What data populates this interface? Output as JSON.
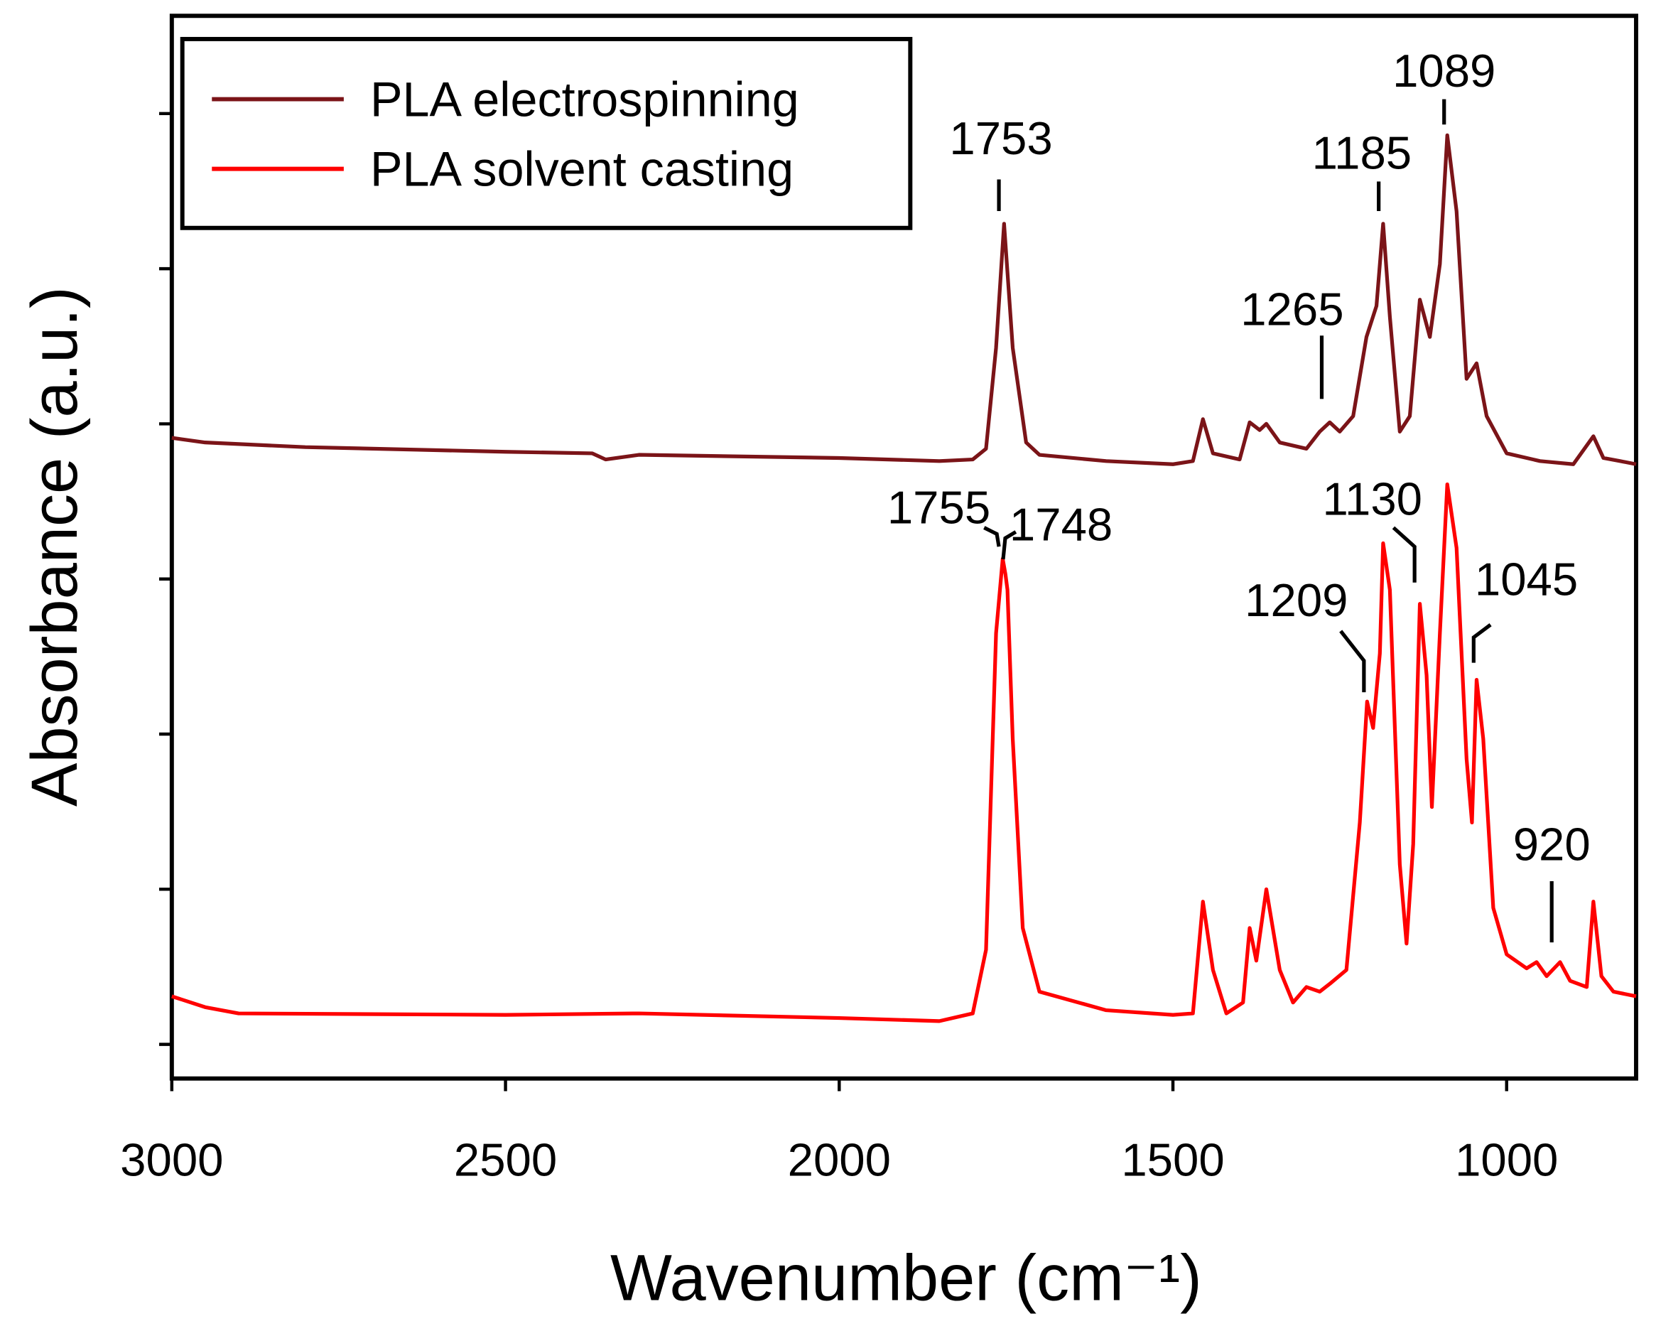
{
  "chart_data": {
    "type": "line",
    "xlabel": "Wavenumber (cm⁻¹)",
    "ylabel": "Absorbance (a.u.)",
    "xlim": [
      3000,
      806
    ],
    "xticks": [
      3000,
      2500,
      2000,
      1500,
      1000
    ],
    "ylim": [
      -0.22,
      6.63
    ],
    "yticks": [
      0,
      1,
      2,
      3,
      4,
      5,
      6
    ],
    "legend": "upper left",
    "series": [
      {
        "name": "PLA electrospinning",
        "color": "#7b1418",
        "x": [
          3000,
          2950,
          2800,
          2500,
          2370,
          2350,
          2300,
          2000,
          1850,
          1800,
          1780,
          1765,
          1753,
          1740,
          1720,
          1700,
          1600,
          1500,
          1470,
          1455,
          1440,
          1400,
          1385,
          1370,
          1360,
          1340,
          1300,
          1280,
          1265,
          1250,
          1230,
          1210,
          1195,
          1185,
          1175,
          1160,
          1145,
          1130,
          1115,
          1100,
          1089,
          1075,
          1060,
          1045,
          1030,
          1000,
          950,
          900,
          870,
          855,
          830,
          806
        ],
        "values": [
          3.91,
          3.88,
          3.85,
          3.82,
          3.81,
          3.77,
          3.8,
          3.78,
          3.76,
          3.77,
          3.84,
          4.49,
          5.29,
          4.49,
          3.88,
          3.8,
          3.76,
          3.74,
          3.76,
          4.03,
          3.81,
          3.77,
          4.01,
          3.96,
          4.0,
          3.88,
          3.84,
          3.95,
          4.01,
          3.95,
          4.05,
          4.56,
          4.76,
          5.29,
          4.69,
          3.95,
          4.05,
          4.8,
          4.56,
          5.03,
          5.86,
          5.37,
          4.29,
          4.39,
          4.05,
          3.81,
          3.76,
          3.74,
          3.92,
          3.78,
          3.76,
          3.74
        ]
      },
      {
        "name": "PLA solvent casting",
        "color": "#ff0000",
        "x": [
          3000,
          2950,
          2900,
          2500,
          2300,
          2000,
          1850,
          1800,
          1780,
          1765,
          1755,
          1751,
          1748,
          1740,
          1725,
          1700,
          1600,
          1500,
          1470,
          1455,
          1440,
          1420,
          1395,
          1385,
          1375,
          1360,
          1340,
          1320,
          1300,
          1280,
          1265,
          1240,
          1220,
          1209,
          1200,
          1190,
          1185,
          1175,
          1160,
          1150,
          1140,
          1130,
          1120,
          1112,
          1100,
          1089,
          1075,
          1060,
          1052,
          1045,
          1035,
          1020,
          1000,
          970,
          955,
          940,
          920,
          905,
          880,
          870,
          858,
          840,
          806
        ],
        "values": [
          0.31,
          0.24,
          0.2,
          0.19,
          0.2,
          0.17,
          0.15,
          0.2,
          0.61,
          2.65,
          3.13,
          3.03,
          2.93,
          1.97,
          0.75,
          0.34,
          0.22,
          0.19,
          0.2,
          0.92,
          0.48,
          0.2,
          0.27,
          0.75,
          0.54,
          1.0,
          0.48,
          0.27,
          0.37,
          0.34,
          0.39,
          0.48,
          1.43,
          2.21,
          2.04,
          2.52,
          3.23,
          2.93,
          1.16,
          0.65,
          1.29,
          2.84,
          2.38,
          1.53,
          2.65,
          3.61,
          3.2,
          1.84,
          1.43,
          2.35,
          1.97,
          0.88,
          0.58,
          0.49,
          0.53,
          0.44,
          0.53,
          0.41,
          0.37,
          0.92,
          0.44,
          0.34,
          0.31
        ]
      }
    ],
    "annotations": [
      "1753",
      "1265",
      "1185",
      "1089",
      "1755",
      "1748",
      "1130",
      "1209",
      "1045",
      "920"
    ]
  }
}
